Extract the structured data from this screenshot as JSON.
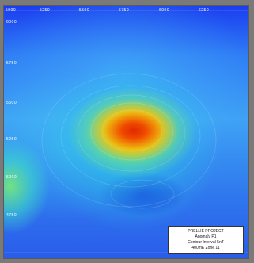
{
  "map": {
    "x_tick_labels": [
      "5000",
      "5250",
      "5500",
      "5750",
      "6000",
      "6250"
    ],
    "y_tick_labels": [
      "6000",
      "5750",
      "5500",
      "5250",
      "5000",
      "4750"
    ]
  },
  "legend": {
    "lines": [
      "PRELLIE PROJECT",
      "Anomaly P1",
      "Contour Interval 5nT",
      "400mE  Zone 11"
    ]
  },
  "colors": {
    "anomaly_high": "#e22800",
    "anomaly_mid": "#ffbe00",
    "background_low": "#1a3cf0"
  }
}
